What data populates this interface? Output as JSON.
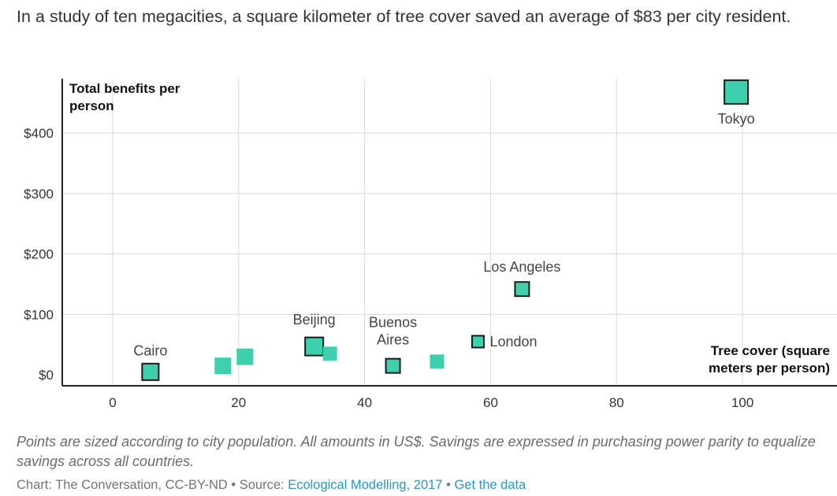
{
  "title": "In a study of ten megacities, a square kilometer of tree cover saved an average of $83 per city resident.",
  "note": "Points are sized according to city population. All amounts in US$. Savings are expressed in purchasing power parity to equalize savings across all countries.",
  "credit": {
    "prefix": "Chart: The Conversation, CC-BY-ND",
    "sep1": " • Source: ",
    "source_link": "Ecological Modelling, 2017",
    "sep2": " • ",
    "data_link": "Get the data"
  },
  "colors": {
    "point": "#3ecfae",
    "outline": "#1a1a1a",
    "grid": "#d9d9d9",
    "axis": "#222222"
  },
  "chart_data": {
    "type": "scatter",
    "ylabel": "Total benefits per person",
    "xlabel": "Tree cover (square meters per person)",
    "xlim": [
      -8,
      115
    ],
    "ylim": [
      -18,
      490
    ],
    "x_ticks": [
      0,
      20,
      40,
      60,
      80,
      100
    ],
    "x_tick_labels": [
      "0",
      "20",
      "40",
      "60",
      "80",
      "100"
    ],
    "y_ticks": [
      0,
      100,
      200,
      300,
      400
    ],
    "y_tick_labels": [
      "$0",
      "$100",
      "$200",
      "$300",
      "$400"
    ],
    "grid": true,
    "points": [
      {
        "label": "Cairo",
        "x": 6,
        "y": 5,
        "size": "medium",
        "outlined": true
      },
      {
        "label": "",
        "x": 17.5,
        "y": 15,
        "size": "medium",
        "outlined": false
      },
      {
        "label": "",
        "x": 21,
        "y": 30,
        "size": "medium",
        "outlined": false
      },
      {
        "label": "Beijing",
        "x": 32,
        "y": 47,
        "size": "large",
        "outlined": true
      },
      {
        "label": "",
        "x": 34.5,
        "y": 35,
        "size": "small",
        "outlined": false
      },
      {
        "label": "Buenos Aires",
        "x": 44.5,
        "y": 15,
        "size": "small",
        "outlined": true
      },
      {
        "label": "",
        "x": 51.5,
        "y": 22,
        "size": "small",
        "outlined": false
      },
      {
        "label": "London",
        "x": 58,
        "y": 55,
        "size": "xsmall",
        "outlined": true
      },
      {
        "label": "Los Angeles",
        "x": 65,
        "y": 142,
        "size": "small",
        "outlined": true
      },
      {
        "label": "Tokyo",
        "x": 99,
        "y": 468,
        "size": "xlarge",
        "outlined": true
      }
    ]
  }
}
